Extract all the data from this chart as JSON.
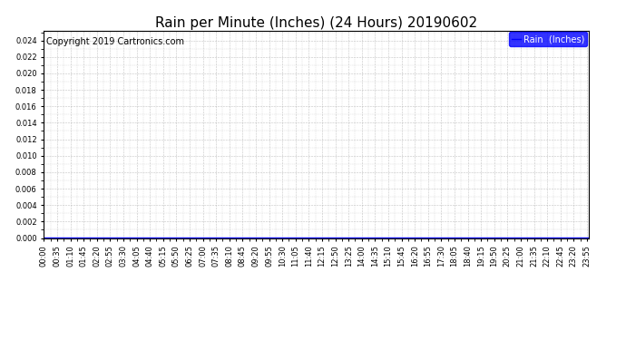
{
  "title": "Rain per Minute (Inches) (24 Hours) 20190602",
  "copyright_text": "Copyright 2019 Cartronics.com",
  "legend_label": "Rain  (Inches)",
  "legend_bg_color": "#0000FF",
  "legend_text_color": "#FFFFFF",
  "background_color": "#FFFFFF",
  "plot_bg_color": "#FFFFFF",
  "grid_color": "#AAAAAA",
  "line_color": "#0000FF",
  "x_tick_interval_minutes": 35,
  "ylim": [
    0.0,
    0.0252
  ],
  "yticks": [
    0.0,
    0.002,
    0.004,
    0.006,
    0.008,
    0.01,
    0.012,
    0.014,
    0.016,
    0.018,
    0.02,
    0.022,
    0.024
  ],
  "total_minutes": 1440,
  "title_fontsize": 11,
  "tick_fontsize": 6,
  "copyright_fontsize": 7
}
